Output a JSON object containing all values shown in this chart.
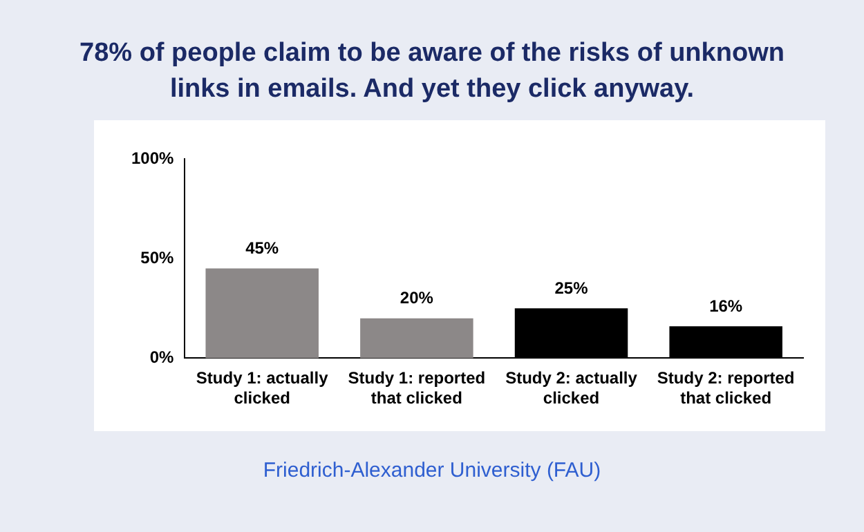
{
  "chart_data": {
    "type": "bar",
    "title": "78% of people claim to be aware of the risks of unknown links in emails. And yet they click anyway.",
    "categories": [
      "Study 1: actually clicked",
      "Study 1: reported that clicked",
      "Study 2: actually clicked",
      "Study 2: reported that clicked"
    ],
    "values": [
      45,
      20,
      25,
      16
    ],
    "colors": [
      "#8c8888",
      "#8c8888",
      "#000000",
      "#000000"
    ],
    "value_labels": [
      "45%",
      "20%",
      "25%",
      "16%"
    ],
    "ylim": [
      0,
      100
    ],
    "yticks": [
      {
        "value": 0,
        "label": "0%"
      },
      {
        "value": 50,
        "label": "50%"
      },
      {
        "value": 100,
        "label": "100%"
      }
    ],
    "grid": false,
    "legend": false,
    "annotations": [
      "Friedrich-Alexander University (FAU)"
    ]
  }
}
